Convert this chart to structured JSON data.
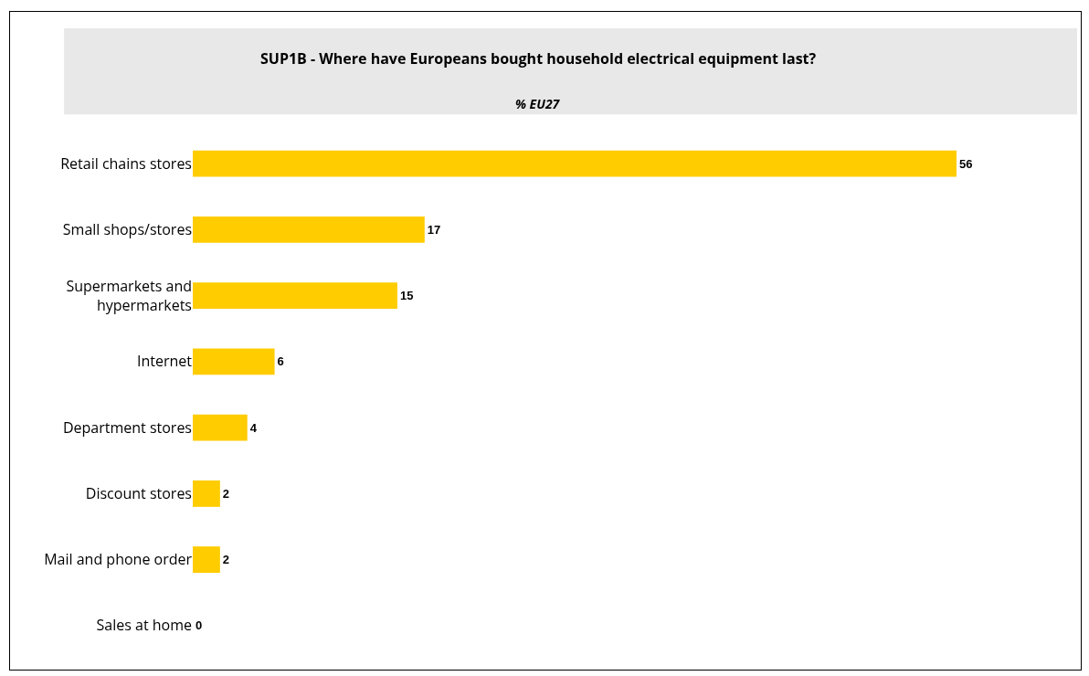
{
  "chart_data": {
    "type": "bar",
    "orientation": "horizontal",
    "title": "SUP1B - Where have Europeans bought household electrical equipment last?",
    "subtitle": "% EU27",
    "categories": [
      "Retail chains stores",
      "Small shops/stores",
      "Supermarkets and hypermarkets",
      "Internet",
      "Department stores",
      "Discount stores",
      "Mail and phone order",
      "Sales at home"
    ],
    "values": [
      56,
      17,
      15,
      6,
      4,
      2,
      2,
      0
    ],
    "color": "#ffcc00",
    "data_labels": true,
    "grid": false,
    "legend": false
  }
}
